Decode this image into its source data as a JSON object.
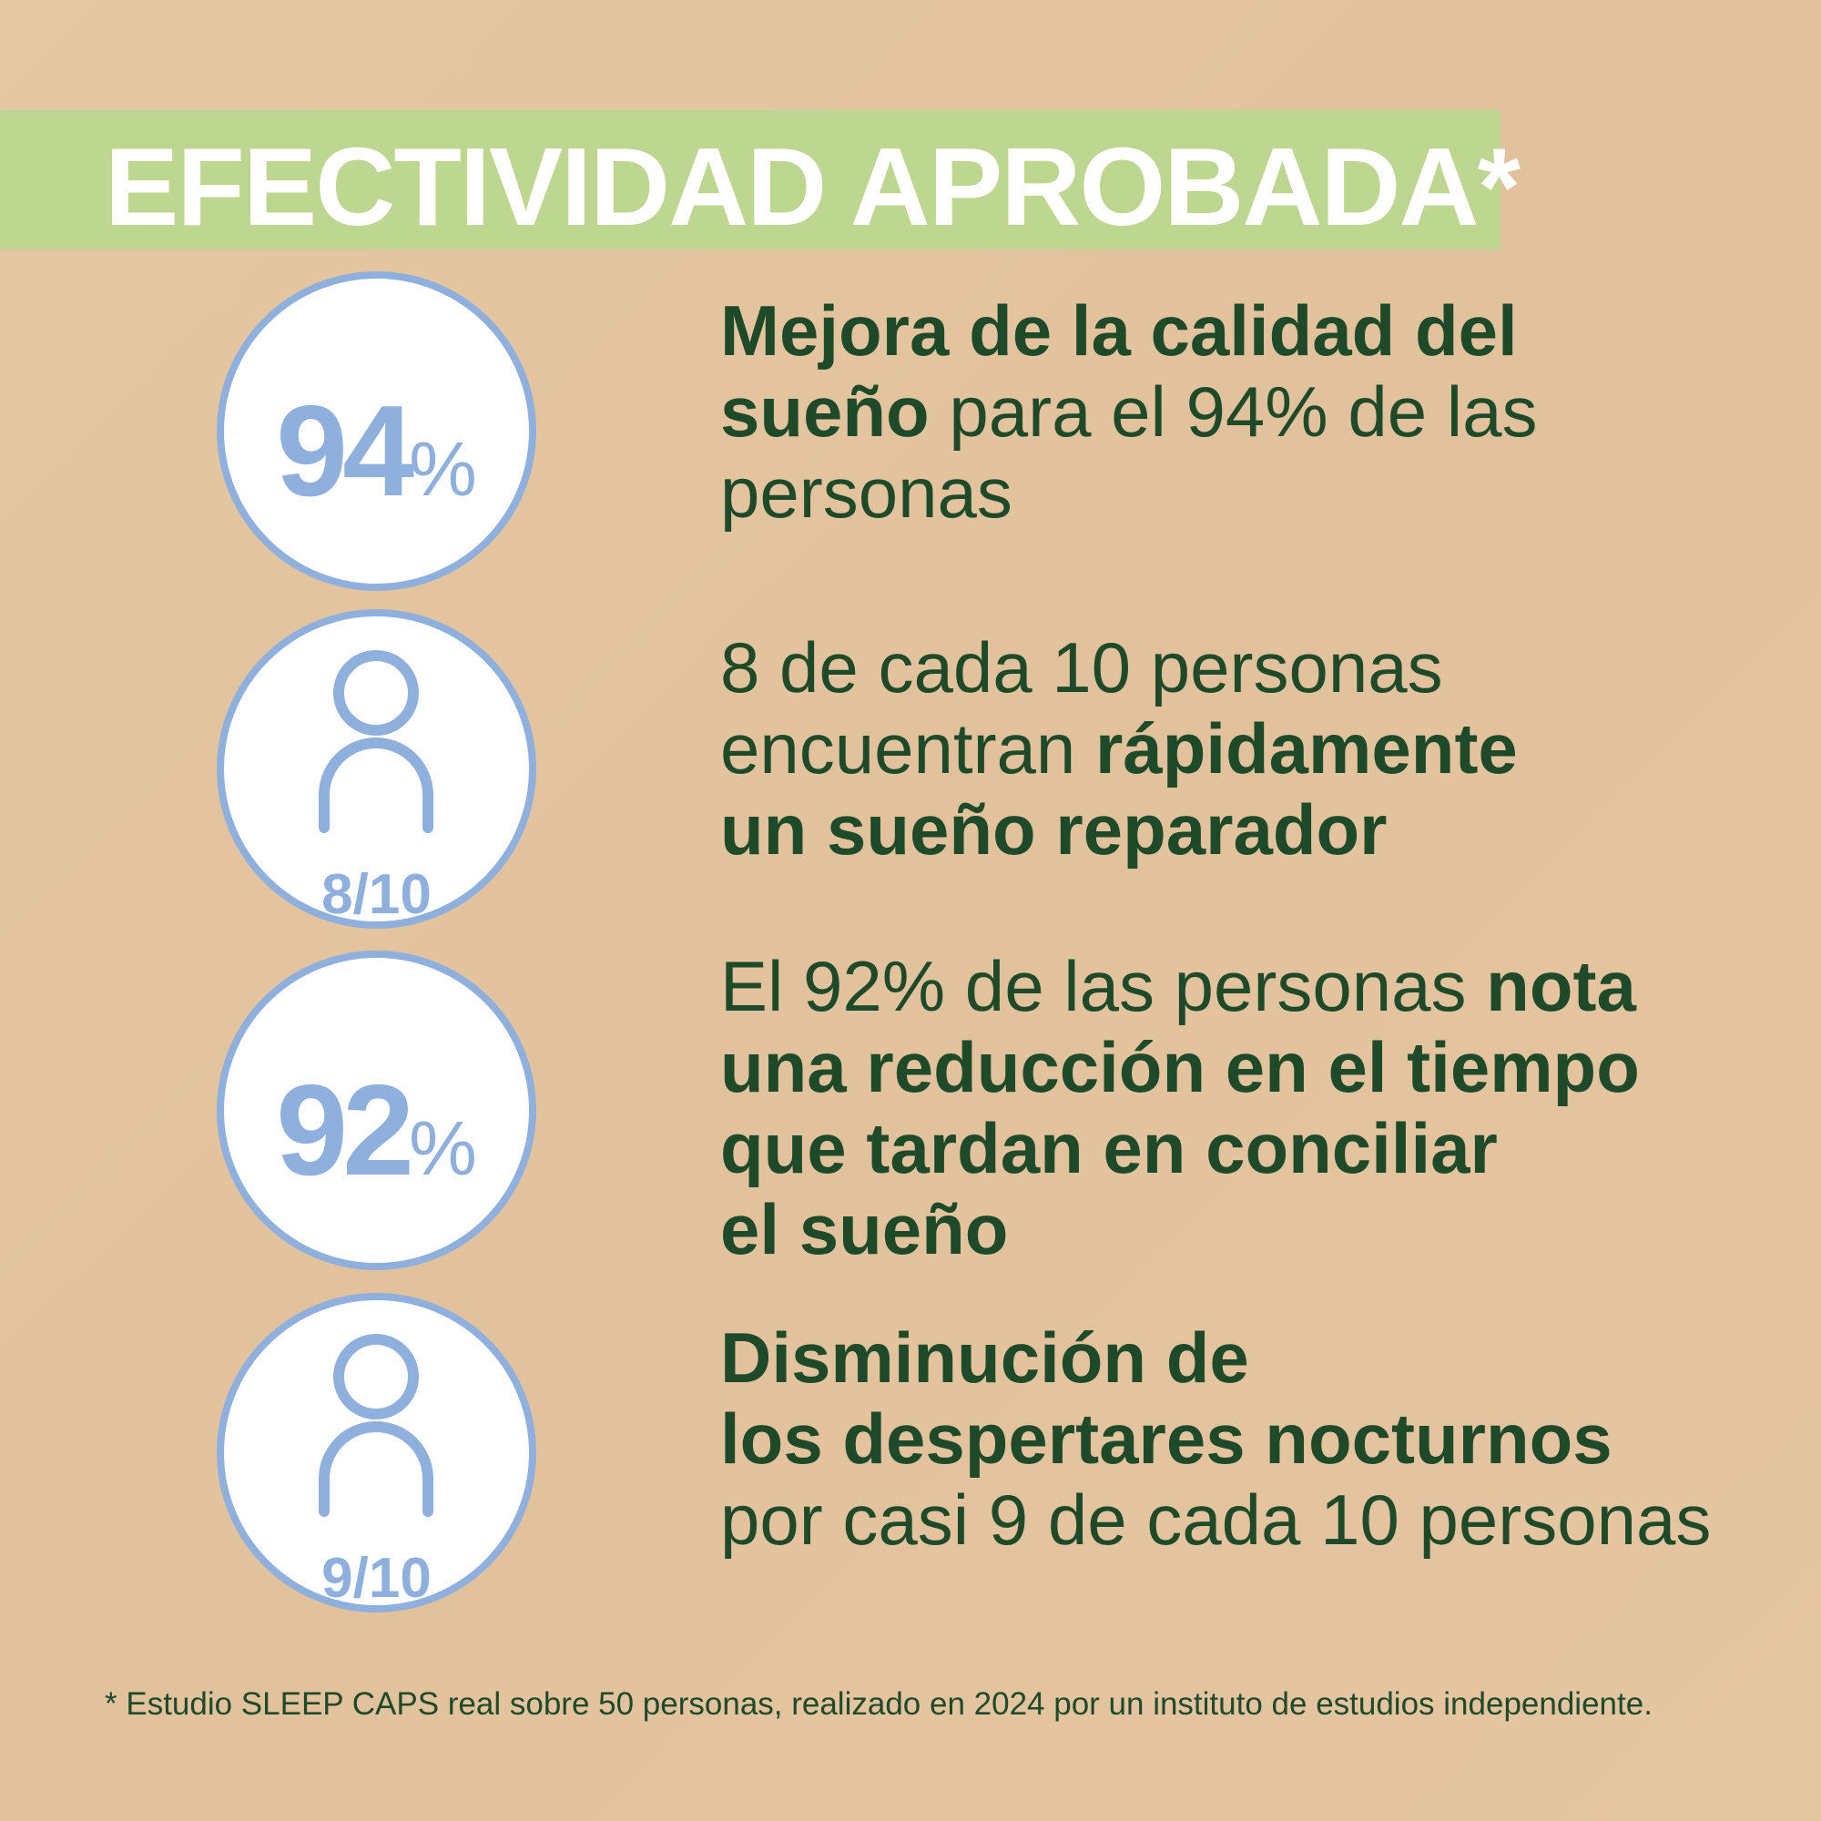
{
  "header": {
    "title": "EFECTIVIDAD APROBADA*"
  },
  "colors": {
    "background": "#e3c4a0",
    "band": "#bdd690",
    "circle_accent": "#8fb0dc",
    "text": "#1e4a29"
  },
  "stats": [
    {
      "badge_number": "94",
      "badge_symbol": "%",
      "lines": [
        [
          {
            "t": "Mejora de la calidad del",
            "b": true
          }
        ],
        [
          {
            "t": "sueño",
            "b": true
          },
          {
            "t": " para el 94% de las",
            "b": false
          }
        ],
        [
          {
            "t": "personas",
            "b": false
          }
        ]
      ]
    },
    {
      "badge_icon": "person-icon",
      "badge_fraction": "8/10",
      "lines": [
        [
          {
            "t": "8 de cada 10 personas",
            "b": false
          }
        ],
        [
          {
            "t": "encuentran ",
            "b": false
          },
          {
            "t": "rápidamente",
            "b": true
          }
        ],
        [
          {
            "t": "un sueño reparador",
            "b": true
          }
        ]
      ]
    },
    {
      "badge_number": "92",
      "badge_symbol": "%",
      "lines": [
        [
          {
            "t": "El 92% de las personas ",
            "b": false
          },
          {
            "t": "nota",
            "b": true
          }
        ],
        [
          {
            "t": "una reducción en el tiempo",
            "b": true
          }
        ],
        [
          {
            "t": "que tardan en conciliar",
            "b": true
          }
        ],
        [
          {
            "t": "el sueño",
            "b": true
          }
        ]
      ]
    },
    {
      "badge_icon": "person-icon",
      "badge_fraction": "9/10",
      "lines": [
        [
          {
            "t": "Disminución de",
            "b": true
          }
        ],
        [
          {
            "t": "los despertares nocturnos",
            "b": true
          }
        ],
        [
          {
            "t": "por casi 9 de cada 10 personas",
            "b": false
          }
        ]
      ]
    }
  ],
  "footnote": "* Estudio SLEEP CAPS real sobre 50 personas, realizado en 2024 por un instituto de estudios independiente."
}
